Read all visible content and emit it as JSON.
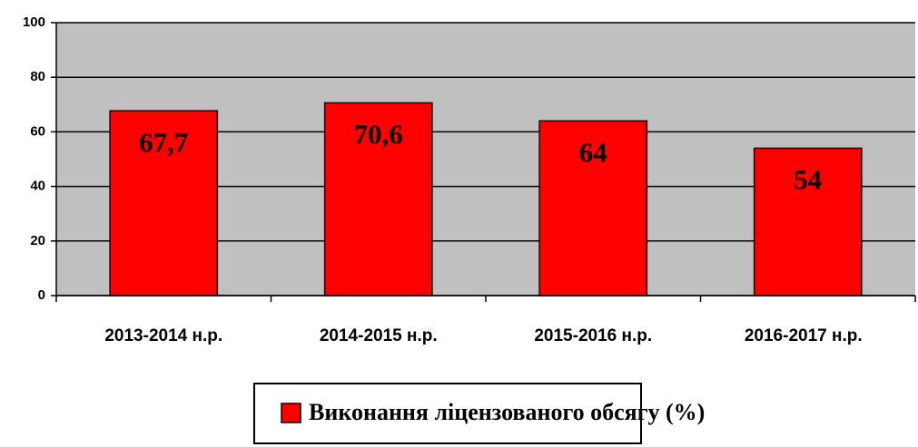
{
  "chart_data": {
    "type": "bar",
    "categories": [
      "2013-2014 н.р.",
      "2014-2015 н.р.",
      "2015-2016 н.р.",
      "2016-2017 н.р."
    ],
    "series": [
      {
        "name": "Виконання ліцензованого обсягу (%)",
        "color": "#ff0000",
        "values": [
          67.7,
          70.6,
          64,
          54
        ],
        "value_labels": [
          "67,7",
          "70,6",
          "64",
          "54"
        ]
      }
    ],
    "ylim": [
      0,
      100
    ],
    "yticks": [
      0,
      20,
      40,
      60,
      80,
      100
    ],
    "grid": true
  }
}
